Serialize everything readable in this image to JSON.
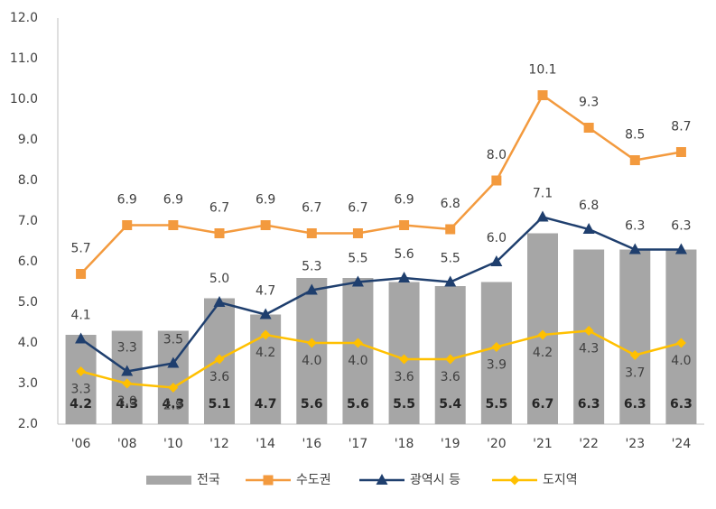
{
  "chart_data": {
    "type": "combo",
    "categories": [
      "'06",
      "'08",
      "'10",
      "'12",
      "'14",
      "'16",
      "'17",
      "'18",
      "'19",
      "'20",
      "'21",
      "'22",
      "'23",
      "'24"
    ],
    "ylim": [
      2,
      12
    ],
    "yticks": [
      {
        "value": 2,
        "label": "2.0"
      },
      {
        "value": 3,
        "label": "3.0"
      },
      {
        "value": 4,
        "label": "4.0"
      },
      {
        "value": 5,
        "label": "5.0"
      },
      {
        "value": 6,
        "label": "6.0"
      },
      {
        "value": 7,
        "label": "7.0"
      },
      {
        "value": 8,
        "label": "8.0"
      },
      {
        "value": 9,
        "label": "9.0"
      },
      {
        "value": 10,
        "label": "10.0"
      },
      {
        "value": 11,
        "label": "11.0"
      },
      {
        "value": 12,
        "label": "12.0"
      }
    ],
    "legend": "bottom",
    "series": [
      {
        "name": "전국",
        "type": "bar",
        "color": "#a6a6a6",
        "values": [
          4.2,
          4.3,
          4.3,
          5.1,
          4.7,
          5.6,
          5.6,
          5.5,
          5.4,
          5.5,
          6.7,
          6.3,
          6.3,
          6.3
        ]
      },
      {
        "name": "수도권",
        "type": "line",
        "marker": "square",
        "color": "#f39a3e",
        "values": [
          5.7,
          6.9,
          6.9,
          6.7,
          6.9,
          6.7,
          6.7,
          6.9,
          6.8,
          8.0,
          10.1,
          9.3,
          8.5,
          8.7
        ],
        "value_labels": [
          "5.7",
          "6.9",
          "6.9",
          "6.7",
          "6.9",
          "6.7",
          "6.7",
          "6.9",
          "6.8",
          "8.0",
          "10.1",
          "9.3",
          "8.5",
          "8.7"
        ]
      },
      {
        "name": "광역시 등",
        "type": "line",
        "marker": "triangle",
        "color": "#1f3f6e",
        "values": [
          4.1,
          3.3,
          3.5,
          5.0,
          4.7,
          5.3,
          5.5,
          5.6,
          5.5,
          6.0,
          7.1,
          6.8,
          6.3,
          6.3
        ],
        "value_labels": [
          "4.1",
          "3.3",
          "3.5",
          "5.0",
          "4.7",
          "5.3",
          "5.5",
          "5.6",
          "5.5",
          "6.0",
          "7.1",
          "6.8",
          "6.3",
          "6.3"
        ]
      },
      {
        "name": "도지역",
        "type": "line",
        "marker": "diamond",
        "color": "#ffc000",
        "values": [
          3.3,
          3.0,
          2.9,
          3.6,
          4.2,
          4.0,
          4.0,
          3.6,
          3.6,
          3.9,
          4.2,
          4.3,
          3.7,
          4.0
        ],
        "value_labels": [
          "3.3",
          "3.0",
          "2.9",
          "3.6",
          "4.2",
          "4.0",
          "4.0",
          "3.6",
          "3.6",
          "3.9",
          "4.2",
          "4.3",
          "3.7",
          "4.0"
        ]
      }
    ]
  }
}
